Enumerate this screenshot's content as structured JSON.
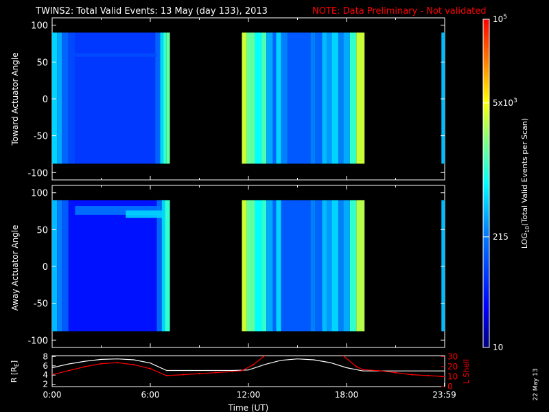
{
  "header": {
    "title": "TWINS2: Total Valid Events: 13 May (day 133), 2013",
    "note": "NOTE: Data Preliminary - Not validated",
    "note_color": "#ff0000"
  },
  "chart_data": [
    {
      "type": "heatmap",
      "name": "toward",
      "ylabel": "Toward Actuator Angle",
      "xlim": [
        0,
        24
      ],
      "ylim": [
        -110,
        110
      ],
      "yticks": [
        100,
        50,
        0,
        -50,
        -100
      ],
      "data_y_range": [
        -88,
        90
      ],
      "columns": [
        {
          "x0": 0.0,
          "x1": 0.3,
          "level": 0.45
        },
        {
          "x0": 0.3,
          "x1": 0.6,
          "level": 0.4
        },
        {
          "x0": 0.6,
          "x1": 1.0,
          "level": 0.3
        },
        {
          "x0": 1.0,
          "x1": 1.4,
          "level": 0.25
        },
        {
          "x0": 1.4,
          "x1": 6.3,
          "level": 0.22
        },
        {
          "x0": 6.3,
          "x1": 6.6,
          "level": 0.3
        },
        {
          "x0": 6.6,
          "x1": 6.8,
          "level": 0.45
        },
        {
          "x0": 6.8,
          "x1": 7.0,
          "level": 0.55
        },
        {
          "x0": 7.0,
          "x1": 7.2,
          "level": 0.6
        },
        {
          "x0": 11.6,
          "x1": 11.9,
          "level": 0.7
        },
        {
          "x0": 11.9,
          "x1": 12.4,
          "level": 0.6
        },
        {
          "x0": 12.4,
          "x1": 12.8,
          "level": 0.5
        },
        {
          "x0": 12.8,
          "x1": 13.1,
          "level": 0.58
        },
        {
          "x0": 13.1,
          "x1": 13.5,
          "level": 0.4
        },
        {
          "x0": 13.5,
          "x1": 13.7,
          "level": 0.3
        },
        {
          "x0": 13.7,
          "x1": 14.0,
          "level": 0.45
        },
        {
          "x0": 14.0,
          "x1": 14.4,
          "level": 0.35
        },
        {
          "x0": 14.4,
          "x1": 15.8,
          "level": 0.28
        },
        {
          "x0": 15.8,
          "x1": 16.1,
          "level": 0.35
        },
        {
          "x0": 16.1,
          "x1": 16.5,
          "level": 0.3
        },
        {
          "x0": 16.5,
          "x1": 16.8,
          "level": 0.42
        },
        {
          "x0": 16.8,
          "x1": 17.1,
          "level": 0.38
        },
        {
          "x0": 17.1,
          "x1": 17.5,
          "level": 0.45
        },
        {
          "x0": 17.5,
          "x1": 17.8,
          "level": 0.35
        },
        {
          "x0": 17.8,
          "x1": 18.2,
          "level": 0.4
        },
        {
          "x0": 18.2,
          "x1": 18.6,
          "level": 0.55
        },
        {
          "x0": 18.6,
          "x1": 19.1,
          "level": 0.7
        },
        {
          "x0": 23.8,
          "x1": 24.0,
          "level": 0.42
        }
      ]
    },
    {
      "type": "heatmap",
      "name": "away",
      "ylabel": "Away Actuator Angle",
      "xlim": [
        0,
        24
      ],
      "ylim": [
        -110,
        110
      ],
      "yticks": [
        100,
        50,
        0,
        -50,
        -100
      ],
      "data_y_range": [
        -88,
        90
      ],
      "columns": [
        {
          "x0": 0.0,
          "x1": 0.3,
          "level": 0.42
        },
        {
          "x0": 0.3,
          "x1": 0.6,
          "level": 0.35
        },
        {
          "x0": 0.6,
          "x1": 1.0,
          "level": 0.28
        },
        {
          "x0": 1.0,
          "x1": 6.4,
          "level": 0.15
        },
        {
          "x0": 6.4,
          "x1": 6.7,
          "level": 0.3
        },
        {
          "x0": 6.7,
          "x1": 6.9,
          "level": 0.45
        },
        {
          "x0": 6.9,
          "x1": 7.2,
          "level": 0.55
        },
        {
          "x0": 11.6,
          "x1": 11.9,
          "level": 0.7
        },
        {
          "x0": 11.9,
          "x1": 12.4,
          "level": 0.6
        },
        {
          "x0": 12.4,
          "x1": 12.8,
          "level": 0.5
        },
        {
          "x0": 12.8,
          "x1": 13.1,
          "level": 0.55
        },
        {
          "x0": 13.1,
          "x1": 13.5,
          "level": 0.4
        },
        {
          "x0": 13.5,
          "x1": 13.7,
          "level": 0.3
        },
        {
          "x0": 13.7,
          "x1": 14.0,
          "level": 0.45
        },
        {
          "x0": 14.0,
          "x1": 15.8,
          "level": 0.28
        },
        {
          "x0": 15.8,
          "x1": 16.1,
          "level": 0.35
        },
        {
          "x0": 16.1,
          "x1": 16.5,
          "level": 0.3
        },
        {
          "x0": 16.5,
          "x1": 16.8,
          "level": 0.42
        },
        {
          "x0": 16.8,
          "x1": 17.1,
          "level": 0.38
        },
        {
          "x0": 17.1,
          "x1": 17.5,
          "level": 0.45
        },
        {
          "x0": 17.5,
          "x1": 17.8,
          "level": 0.35
        },
        {
          "x0": 17.8,
          "x1": 18.2,
          "level": 0.4
        },
        {
          "x0": 18.2,
          "x1": 18.6,
          "level": 0.55
        },
        {
          "x0": 18.6,
          "x1": 19.1,
          "level": 0.68
        },
        {
          "x0": 23.8,
          "x1": 24.0,
          "level": 0.42
        }
      ]
    },
    {
      "type": "line",
      "name": "ephemeris",
      "ylabel_left": "R [R",
      "ylabel_left_sub": "E",
      "ylabel_left_close": "]",
      "ylabel_right": "L Shell",
      "xlabel": "Time (UT)",
      "xticks": [
        "0:00",
        "6:00",
        "12:00",
        "18:00",
        "23:59"
      ],
      "xtick_values": [
        0,
        6,
        12,
        18,
        23.98
      ],
      "left_ylim": [
        1.5,
        8.2
      ],
      "left_yticks": [
        8,
        6,
        4,
        2
      ],
      "right_ylim": [
        0,
        31
      ],
      "right_yticks": [
        30,
        20,
        10,
        0
      ],
      "series": [
        {
          "color": "#ffffff",
          "axis": "left",
          "x": [
            0,
            1,
            2,
            3,
            4,
            5,
            6,
            7,
            8,
            9,
            10,
            11,
            12,
            13,
            14,
            15,
            16,
            17,
            18,
            19,
            20,
            21,
            22,
            23,
            24
          ],
          "y": [
            5.6,
            6.4,
            7.0,
            7.4,
            7.5,
            7.3,
            6.6,
            5.0,
            5.0,
            5.0,
            5.0,
            5.0,
            5.1,
            6.3,
            7.2,
            7.5,
            7.3,
            6.7,
            5.6,
            4.9,
            4.9,
            4.9,
            4.9,
            4.9,
            4.9
          ]
        },
        {
          "color": "#ff0000",
          "axis": "right",
          "x": [
            0,
            1,
            2,
            3,
            4,
            5,
            6,
            7,
            8,
            9,
            10,
            11,
            11.6,
            12.3,
            13.0,
            null,
            17.8,
            18.6,
            19.0,
            20,
            21,
            22,
            23,
            24
          ],
          "y": [
            12,
            16,
            20,
            23,
            24,
            22,
            18,
            11,
            12,
            13,
            14,
            15,
            16,
            22,
            31,
            null,
            31,
            20,
            17,
            16,
            14,
            12,
            11,
            10
          ]
        }
      ]
    }
  ],
  "colorbar": {
    "label_main": "LOG",
    "label_sub": "10",
    "label_rest": "(Total Valid Events per Scan)",
    "tick_labels": [
      {
        "text": "10",
        "exp": "5",
        "frac": 1.0
      },
      {
        "text": "5x10",
        "exp": "3",
        "frac": 0.745
      },
      {
        "text": "215",
        "frac": 0.337
      },
      {
        "text": "10",
        "frac": 0.0
      }
    ]
  },
  "side_date": "22 May 13"
}
